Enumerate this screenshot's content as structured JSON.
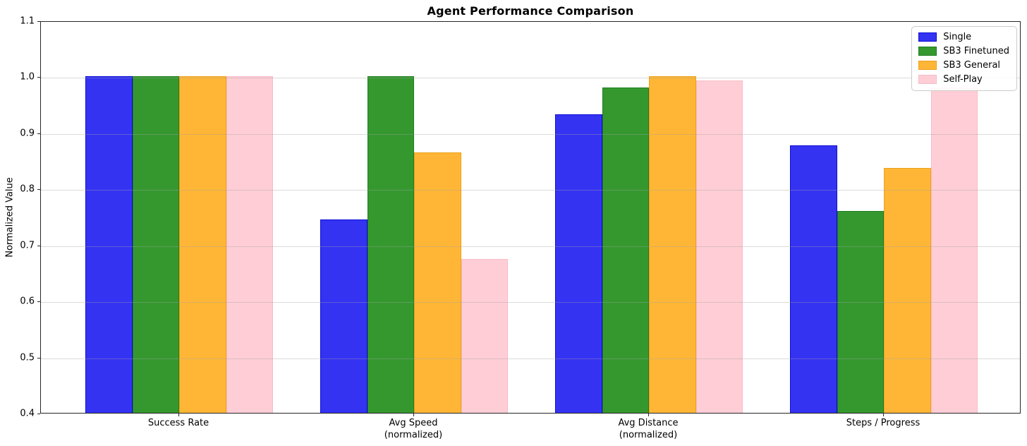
{
  "chart_data": {
    "type": "bar",
    "title": "Agent Performance Comparison",
    "xlabel": "",
    "ylabel": "Normalized Value",
    "ylim": [
      0.4,
      1.1
    ],
    "yticks": [
      0.4,
      0.5,
      0.6,
      0.7,
      0.8,
      0.9,
      1.0,
      1.1
    ],
    "grid": "horizontal",
    "legend_position": "upper right",
    "categories": [
      "Success Rate",
      "Avg Speed\n(normalized)",
      "Avg Distance\n(normalized)",
      "Steps / Progress"
    ],
    "series": [
      {
        "name": "Single",
        "color": "#3533f2",
        "edge": "#0b0bd6",
        "values": [
          1.0,
          0.745,
          0.932,
          0.877
        ]
      },
      {
        "name": "SB3 Finetuned",
        "color": "#35982f",
        "edge": "#1e7d20",
        "values": [
          1.0,
          1.0,
          0.98,
          0.76
        ]
      },
      {
        "name": "SB3 General",
        "color": "#ffb636",
        "edge": "#eda11c",
        "values": [
          1.0,
          0.865,
          1.0,
          0.837
        ]
      },
      {
        "name": "Self-Play",
        "color": "#ffcdd6",
        "edge": "#f8bcc8",
        "values": [
          1.0,
          0.675,
          0.993,
          0.98
        ]
      }
    ]
  }
}
